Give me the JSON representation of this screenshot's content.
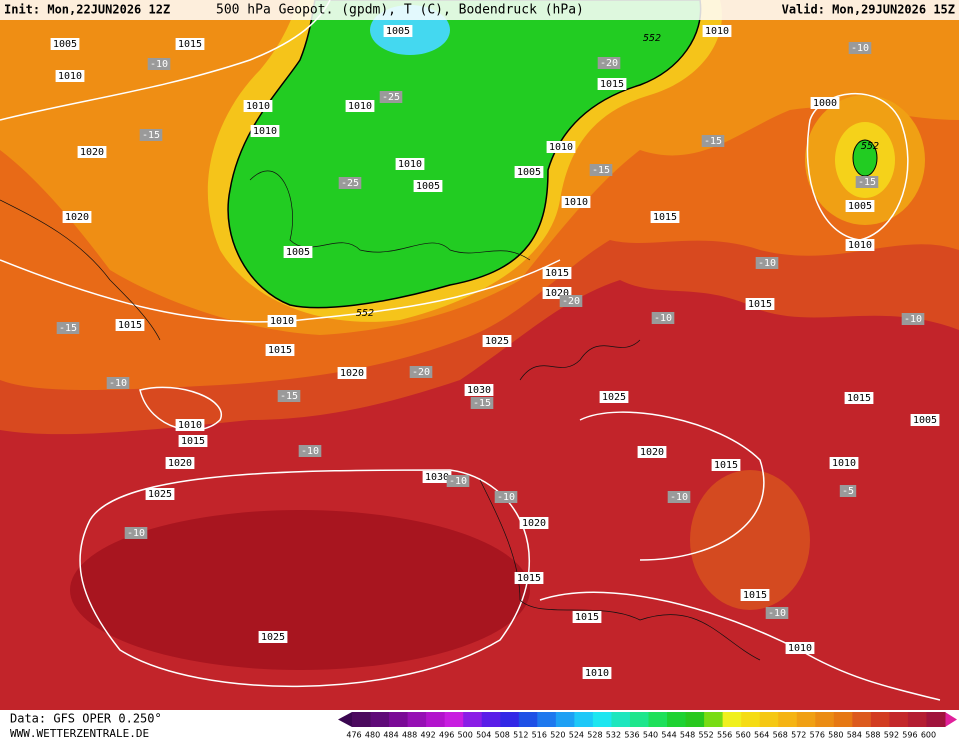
{
  "header": {
    "init": "Init: Mon,22JUN2026 12Z",
    "title": "500 hPa Geopot. (gpdm), T (C), Bodendruck (hPa)",
    "valid": "Valid: Mon,29JUN2026 15Z"
  },
  "footer": {
    "source": "Data: GFS OPER 0.250°",
    "website": "WWW.WETTERZENTRALE.DE"
  },
  "colorbar": {
    "labels": [
      "476",
      "480",
      "484",
      "488",
      "492",
      "496",
      "500",
      "504",
      "508",
      "512",
      "516",
      "520",
      "524",
      "528",
      "532",
      "536",
      "540",
      "544",
      "548",
      "552",
      "556",
      "560",
      "564",
      "568",
      "572",
      "576",
      "580",
      "584",
      "588",
      "592",
      "596",
      "600"
    ]
  },
  "map": {
    "pressure_labels": [
      "1005",
      "1015",
      "1010",
      "1010",
      "1010",
      "1020",
      "1020",
      "1005",
      "1015",
      "1010",
      "1015",
      "1020",
      "1010",
      "1015",
      "1020",
      "1025",
      "1030",
      "1030",
      "1025",
      "1020",
      "1015",
      "1010",
      "1010",
      "1005",
      "1010",
      "1005",
      "1010",
      "1005",
      "1015",
      "1010",
      "1000",
      "1005",
      "1010",
      "1015",
      "1015",
      "1025",
      "1020",
      "1015",
      "1015",
      "1005",
      "1010",
      "1020",
      "1015",
      "1015",
      "1015",
      "1010",
      "1010",
      "1025"
    ],
    "temperature_labels": [
      "-10",
      "-10",
      "-15",
      "-20",
      "-25",
      "-25",
      "-15",
      "-15",
      "-15",
      "-10",
      "-10",
      "-10",
      "-15",
      "-20",
      "-20",
      "-10",
      "-15",
      "-15",
      "-10",
      "-10",
      "-10",
      "-10",
      "-5",
      "-10",
      "-10"
    ],
    "contour_labels": [
      "552",
      "552",
      "552"
    ]
  }
}
